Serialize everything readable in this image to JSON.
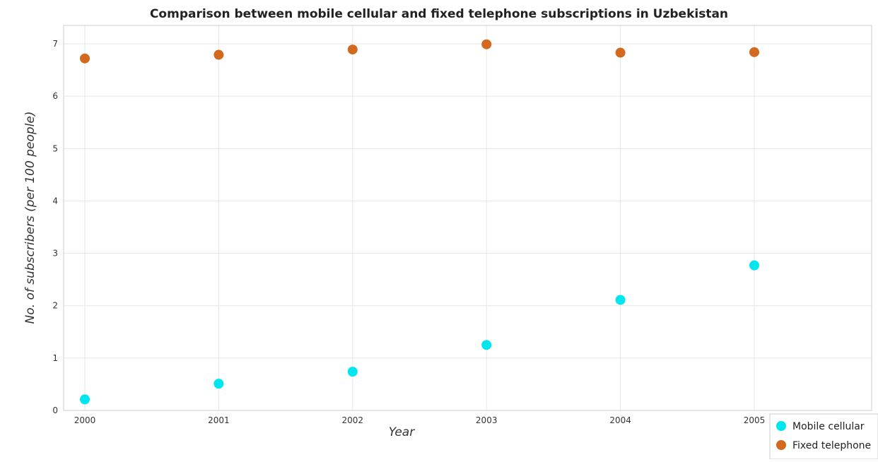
{
  "chart_data": {
    "type": "scatter",
    "title": "Comparison between mobile cellular and fixed telephone subscriptions in Uzbekistan",
    "xlabel": "Year",
    "ylabel": "No. of subscribers (per 100 people)",
    "categories": [
      "2000",
      "2001",
      "2002",
      "2003",
      "2004",
      "2005"
    ],
    "ylim": [
      0,
      7.35
    ],
    "yticks": [
      "0",
      "1",
      "2",
      "3",
      "4",
      "5",
      "6",
      "7"
    ],
    "grid": true,
    "legend_position": "bottom-right",
    "series": [
      {
        "name": "Mobile cellular",
        "color": "#00e5ee",
        "values": [
          0.21,
          0.51,
          0.74,
          1.25,
          2.11,
          2.77
        ]
      },
      {
        "name": "Fixed telephone",
        "color": "#d2691e",
        "values": [
          6.72,
          6.79,
          6.89,
          6.99,
          6.83,
          6.84
        ]
      }
    ]
  }
}
